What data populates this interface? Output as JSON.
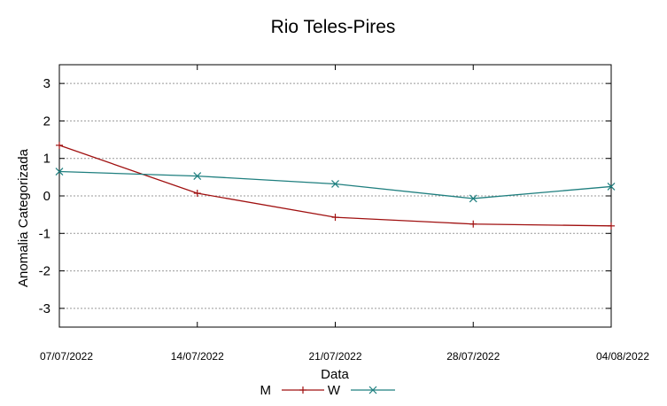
{
  "chart_data": {
    "type": "line",
    "title": "Rio Teles-Pires",
    "xlabel": "Data",
    "ylabel": "Anomalia Categorizada",
    "categories": [
      "07/07/2022",
      "14/07/2022",
      "21/07/2022",
      "28/07/2022",
      "04/08/2022"
    ],
    "y_ticks": [
      "-3",
      "-2",
      "-1",
      "0",
      "1",
      "2",
      "3"
    ],
    "ylim": [
      -3.5,
      3.5
    ],
    "grid": "horizontal-dashed",
    "legend_position": "bottom",
    "series": [
      {
        "name": "M",
        "values": [
          1.35,
          0.07,
          -0.57,
          -0.75,
          -0.8
        ],
        "color": "#a01010",
        "marker": "plus"
      },
      {
        "name": "W",
        "values": [
          0.65,
          0.53,
          0.32,
          -0.07,
          0.25
        ],
        "color": "#1f7f7f",
        "marker": "x"
      }
    ]
  }
}
